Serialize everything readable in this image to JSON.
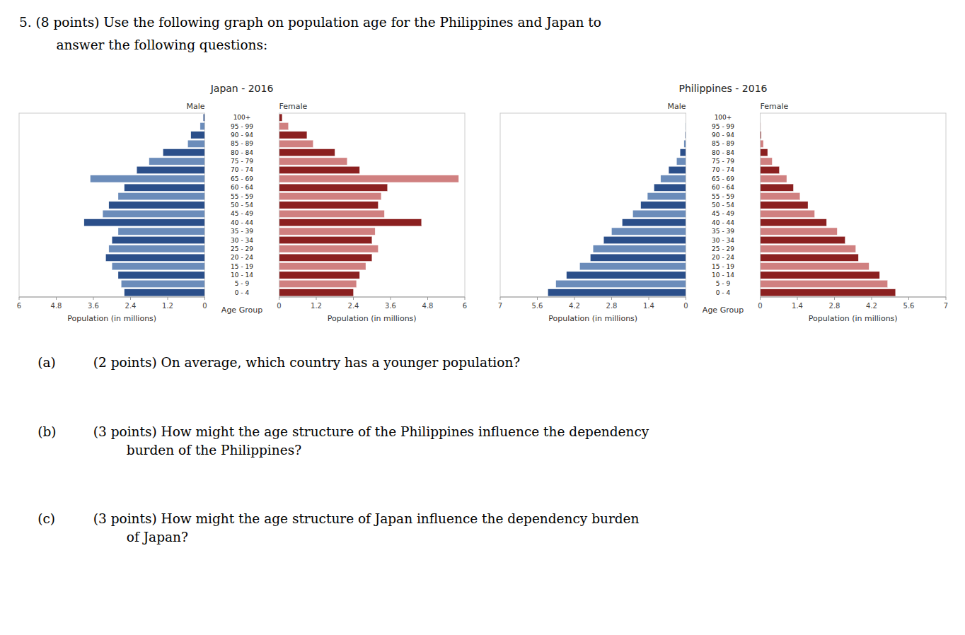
{
  "chart_data": [
    {
      "type": "bar",
      "orientation": "horizontal",
      "title": "Japan - 2016",
      "xlabel": "Population (in millions)",
      "ylabel": "Age Group",
      "categories": [
        "100+",
        "95 - 99",
        "90 - 94",
        "85 - 89",
        "80 - 84",
        "75 - 79",
        "70 - 74",
        "65 - 69",
        "60 - 64",
        "55 - 59",
        "50 - 54",
        "45 - 49",
        "40 - 44",
        "35 - 39",
        "30 - 34",
        "25 - 29",
        "20 - 24",
        "15 - 19",
        "10 - 14",
        "5 - 9",
        "0 - 4"
      ],
      "series": [
        {
          "name": "Male",
          "values": [
            0.05,
            0.15,
            0.45,
            0.55,
            1.35,
            1.8,
            2.2,
            3.7,
            2.6,
            2.8,
            3.1,
            3.3,
            3.9,
            2.8,
            3.0,
            3.1,
            3.2,
            3.0,
            2.8,
            2.7,
            2.6
          ],
          "colors": [
            "#2b4f8a",
            "#6b8cba",
            "#2b4f8a",
            "#6b8cba",
            "#2b4f8a",
            "#6b8cba",
            "#2b4f8a",
            "#6b8cba",
            "#2b4f8a",
            "#6b8cba",
            "#2b4f8a",
            "#6b8cba",
            "#2b4f8a",
            "#6b8cba",
            "#2b4f8a",
            "#6b8cba",
            "#2b4f8a",
            "#6b8cba",
            "#2b4f8a",
            "#6b8cba",
            "#2b4f8a"
          ]
        },
        {
          "name": "Female",
          "values": [
            0.1,
            0.3,
            0.9,
            1.1,
            1.8,
            2.2,
            2.6,
            5.8,
            3.5,
            3.3,
            3.2,
            3.4,
            4.6,
            3.1,
            3.0,
            3.2,
            3.0,
            2.8,
            2.6,
            2.5,
            2.4
          ],
          "colors": [
            "#8b2020",
            "#d08080",
            "#8b2020",
            "#d08080",
            "#8b2020",
            "#d08080",
            "#8b2020",
            "#d08080",
            "#8b2020",
            "#d08080",
            "#8b2020",
            "#d08080",
            "#8b2020",
            "#d08080",
            "#8b2020",
            "#d08080",
            "#8b2020",
            "#d08080",
            "#8b2020",
            "#d08080",
            "#8b2020"
          ]
        }
      ],
      "xlim": [
        0,
        6
      ],
      "xticks": [
        0,
        1.2,
        2.4,
        3.6,
        4.8,
        6
      ],
      "grid": false
    },
    {
      "type": "bar",
      "orientation": "horizontal",
      "title": "Philippines - 2016",
      "xlabel": "Population (in millions)",
      "ylabel": "Age Group",
      "categories": [
        "100+",
        "95 - 99",
        "90 - 94",
        "85 - 89",
        "80 - 84",
        "75 - 79",
        "70 - 74",
        "65 - 69",
        "60 - 64",
        "55 - 59",
        "50 - 54",
        "45 - 49",
        "40 - 44",
        "35 - 39",
        "30 - 34",
        "25 - 29",
        "20 - 24",
        "15 - 19",
        "10 - 14",
        "5 - 9",
        "0 - 4"
      ],
      "series": [
        {
          "name": "Male",
          "values": [
            0.01,
            0.02,
            0.03,
            0.07,
            0.22,
            0.35,
            0.65,
            0.95,
            1.2,
            1.45,
            1.7,
            2.0,
            2.4,
            2.8,
            3.1,
            3.5,
            3.6,
            4.0,
            4.5,
            4.9,
            5.2
          ],
          "colors": [
            "#2b4f8a",
            "#6b8cba",
            "#2b4f8a",
            "#6b8cba",
            "#2b4f8a",
            "#6b8cba",
            "#2b4f8a",
            "#6b8cba",
            "#2b4f8a",
            "#6b8cba",
            "#2b4f8a",
            "#6b8cba",
            "#2b4f8a",
            "#6b8cba",
            "#2b4f8a",
            "#6b8cba",
            "#2b4f8a",
            "#6b8cba",
            "#2b4f8a",
            "#6b8cba",
            "#2b4f8a"
          ]
        },
        {
          "name": "Female",
          "values": [
            0.01,
            0.02,
            0.04,
            0.12,
            0.28,
            0.45,
            0.72,
            1.0,
            1.25,
            1.5,
            1.8,
            2.05,
            2.5,
            2.9,
            3.2,
            3.6,
            3.7,
            4.1,
            4.5,
            4.8,
            5.1
          ],
          "colors": [
            "#8b2020",
            "#d08080",
            "#8b2020",
            "#d08080",
            "#8b2020",
            "#d08080",
            "#8b2020",
            "#d08080",
            "#8b2020",
            "#d08080",
            "#8b2020",
            "#d08080",
            "#8b2020",
            "#d08080",
            "#8b2020",
            "#d08080",
            "#8b2020",
            "#d08080",
            "#8b2020",
            "#d08080",
            "#8b2020"
          ]
        }
      ],
      "xlim": [
        0,
        7
      ],
      "xticks": [
        0,
        1.4,
        2.8,
        4.2,
        5.6,
        7
      ],
      "grid": false
    }
  ],
  "header": [
    "5.  (8 points) Use the following graph on population age for the Philippines and Japan to",
    "answer the following questions:"
  ],
  "questions": [
    {
      "label": "(a)",
      "text": "(2 points) On average, which country has a younger population?"
    },
    {
      "label": "(b)",
      "text": "(3 points) How might the age structure of the Philippines influence the dependency\n        burden of the Philippines?"
    },
    {
      "label": "(c)",
      "text": "(3 points) How might the age structure of Japan influence the dependency burden\n        of Japan?"
    }
  ]
}
